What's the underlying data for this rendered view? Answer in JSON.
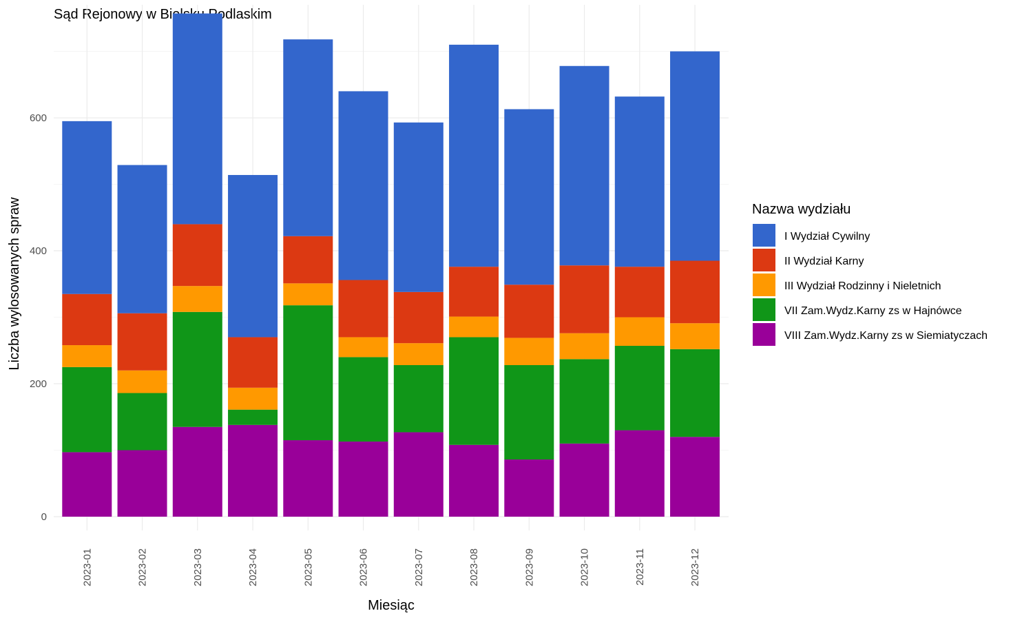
{
  "chart_data": {
    "type": "bar",
    "stacked": true,
    "title": "Sąd Rejonowy w Bielsku Podlaskim",
    "xlabel": "Miesiąc",
    "ylabel": "Liczba wylosowanych spraw",
    "ylim": [
      0,
      770
    ],
    "yticks": [
      0,
      200,
      400,
      600
    ],
    "yticklabels": [
      "0",
      "200",
      "400",
      "600"
    ],
    "grid": true,
    "legend_position": "right",
    "legend_title": "Nazwa wydziału",
    "categories": [
      "2023-01",
      "2023-02",
      "2023-03",
      "2023-04",
      "2023-05",
      "2023-06",
      "2023-07",
      "2023-08",
      "2023-09",
      "2023-10",
      "2023-11",
      "2023-12"
    ],
    "series": [
      {
        "name": "VIII Zam.Wydz.Karny zs w Siemiatyczach",
        "color": "#990099",
        "values": [
          97,
          100,
          135,
          138,
          115,
          113,
          127,
          108,
          86,
          110,
          130,
          120
        ]
      },
      {
        "name": "VII Zam.Wydz.Karny zs w Hajnówce",
        "color": "#109618",
        "values": [
          128,
          86,
          173,
          23,
          203,
          127,
          101,
          162,
          142,
          127,
          127,
          132
        ]
      },
      {
        "name": "III Wydział Rodzinny i Nieletnich",
        "color": "#ff9900",
        "values": [
          33,
          34,
          39,
          33,
          33,
          30,
          33,
          31,
          41,
          39,
          43,
          39
        ]
      },
      {
        "name": "II Wydział Karny",
        "color": "#dc3912",
        "values": [
          77,
          86,
          93,
          76,
          71,
          86,
          77,
          75,
          80,
          102,
          76,
          94
        ]
      },
      {
        "name": "I Wydział Cywilny",
        "color": "#3366cc",
        "values": [
          260,
          223,
          317,
          244,
          296,
          284,
          255,
          334,
          264,
          300,
          256,
          315
        ]
      }
    ]
  }
}
